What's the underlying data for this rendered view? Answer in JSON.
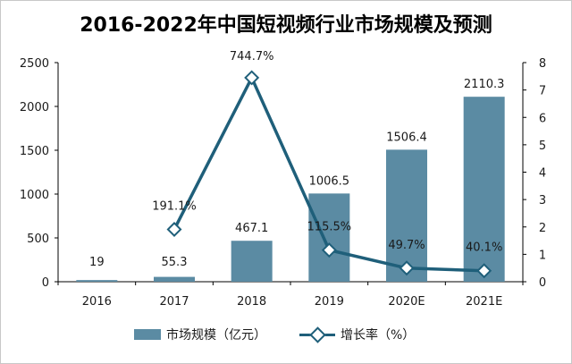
{
  "chart_data": {
    "type": "bar",
    "title": "2016-2022年中国短视频行业市场规模及预测",
    "categories": [
      "2016",
      "2017",
      "2018",
      "2019",
      "2020E",
      "2021E"
    ],
    "series": [
      {
        "name": "市场规模（亿元）",
        "type": "bar",
        "axis": "left",
        "values": [
          19,
          55.3,
          467.1,
          1006.5,
          1506.4,
          2110.3
        ],
        "labels": [
          "19",
          "55.3",
          "467.1",
          "1006.5",
          "1506.4",
          "2110.3"
        ]
      },
      {
        "name": "增长率（%）",
        "type": "line",
        "axis": "right",
        "points": [
          {
            "category": "2017",
            "value": 1.911,
            "label": "191.1%"
          },
          {
            "category": "2018",
            "value": 7.447,
            "label": "744.7%"
          },
          {
            "category": "2019",
            "value": 1.155,
            "label": "115.5%"
          },
          {
            "category": "2020E",
            "value": 0.497,
            "label": "49.7%"
          },
          {
            "category": "2021E",
            "value": 0.401,
            "label": "40.1%"
          }
        ]
      }
    ],
    "y_left": {
      "ylim": [
        0,
        2500
      ],
      "ticks": [
        "0",
        "500",
        "1000",
        "1500",
        "2000",
        "2500"
      ]
    },
    "y_right": {
      "ylim": [
        0,
        8
      ],
      "ticks": [
        "0",
        "1",
        "2",
        "3",
        "4",
        "5",
        "6",
        "7",
        "8"
      ]
    },
    "grid": false,
    "legend_position": "bottom",
    "colors": {
      "bar": "#5b8ba3",
      "line": "#1f5f7a",
      "marker_fill": "#ffffff"
    }
  }
}
